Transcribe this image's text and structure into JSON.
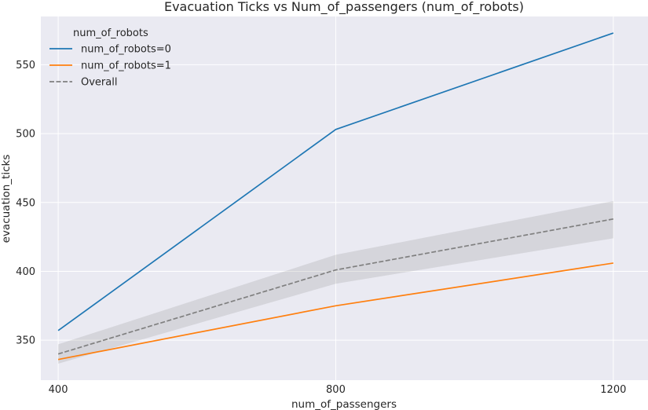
{
  "chart_data": {
    "type": "line",
    "title": "Evacuation Ticks vs Num_of_passengers (num_of_robots)",
    "xlabel": "num_of_passengers",
    "ylabel": "evacuation_ticks",
    "x": [
      400,
      800,
      1200
    ],
    "x_ticks": [
      "400",
      "800",
      "1200"
    ],
    "y_ticks": [
      350,
      400,
      450,
      500,
      550
    ],
    "xlim": [
      375,
      1250
    ],
    "ylim": [
      321,
      585
    ],
    "grid": true,
    "background": "#eaeaf2",
    "legend": {
      "title": "num_of_robots",
      "placement": "top-left"
    },
    "series": [
      {
        "name": "num_of_robots=0",
        "color": "#1f77b4",
        "dash": "solid",
        "values": [
          357,
          503,
          573
        ]
      },
      {
        "name": "num_of_robots=1",
        "color": "#ff7f0e",
        "dash": "solid",
        "values": [
          336,
          375,
          406
        ]
      },
      {
        "name": "Overall",
        "color": "#808080",
        "dash": "dashed",
        "values": [
          340,
          401,
          438
        ],
        "ci_lower": [
          333,
          391,
          424
        ],
        "ci_upper": [
          347,
          412,
          451
        ]
      }
    ]
  }
}
